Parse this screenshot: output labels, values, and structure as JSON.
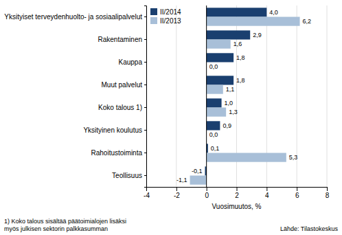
{
  "chart_data": {
    "type": "bar",
    "orientation": "horizontal",
    "categories": [
      "Yksityiset terveydenhuolto- ja sosiaalipalvelut",
      "Rakentaminen",
      "Kauppa",
      "Muut palvelut",
      "Koko talous 1)",
      "Yksityinen koulutus",
      "Rahoitustoiminta",
      "Teollisuus"
    ],
    "series": [
      {
        "name": "II/2014",
        "color": "#1a3f6f",
        "values": [
          4.0,
          2.9,
          1.8,
          1.8,
          1.0,
          0.9,
          0.1,
          -0.1
        ],
        "value_labels": [
          "4,0",
          "2,9",
          "1,8",
          "1,8",
          "1,0",
          "0,9",
          "0,1",
          "-0,1"
        ]
      },
      {
        "name": "II/2013",
        "color": "#a8bfd8",
        "values": [
          6.2,
          1.6,
          0.0,
          1.1,
          1.3,
          0.0,
          5.3,
          -1.1
        ],
        "value_labels": [
          "6,2",
          "1,6",
          "0,0",
          "1,1",
          "1,3",
          "0,0",
          "5,3",
          "-1,1"
        ]
      }
    ],
    "xlabel": "Vuosimuutos, %",
    "xlim": [
      -4,
      8
    ],
    "xticks": [
      -4,
      -2,
      0,
      2,
      4,
      6,
      8
    ],
    "grid": true,
    "legend": "top-left",
    "data_labels": true,
    "annotations": [
      "1) Koko talous sisältää päätoimialojen lisäksi\nmyös julkisen sektorin palkkasumman",
      "Lähde: Tilastokeskus"
    ]
  }
}
